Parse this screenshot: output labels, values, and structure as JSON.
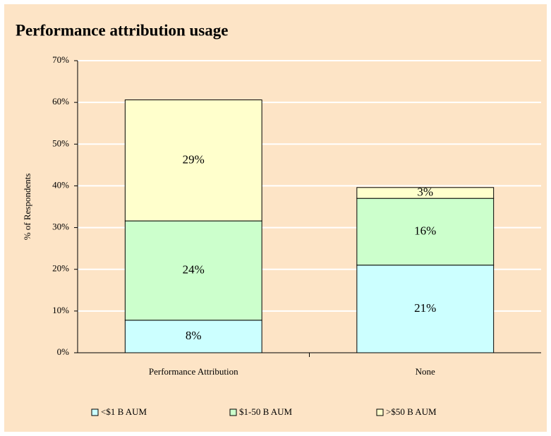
{
  "chart_data": {
    "type": "stacked_bar",
    "title": "Performance attribution usage",
    "ylabel": "% of Respondents",
    "categories": [
      "Performance Attribution",
      "None"
    ],
    "series": [
      {
        "name": "<$1 B AUM",
        "color": "#ccffff",
        "values": [
          7.8,
          21
        ],
        "value_labels": [
          "8%",
          "21%"
        ]
      },
      {
        "name": "$1-50 B AUM",
        "color": "#ccffcc",
        "values": [
          23.8,
          16
        ],
        "value_labels": [
          "24%",
          "16%"
        ]
      },
      {
        "name": ">$50 B AUM",
        "color": "#ffffcc",
        "values": [
          29,
          2.6
        ],
        "value_labels": [
          "29%",
          "3%"
        ]
      }
    ],
    "ylim": [
      0,
      70
    ],
    "yticks": [
      {
        "value": 0,
        "label": "0%"
      },
      {
        "value": 10,
        "label": "10%"
      },
      {
        "value": 20,
        "label": "20%"
      },
      {
        "value": 30,
        "label": "30%"
      },
      {
        "value": 40,
        "label": "40%"
      },
      {
        "value": 50,
        "label": "50%"
      },
      {
        "value": 60,
        "label": "60%"
      },
      {
        "value": 70,
        "label": "70%"
      }
    ],
    "grid": true,
    "legend": "bottom"
  }
}
